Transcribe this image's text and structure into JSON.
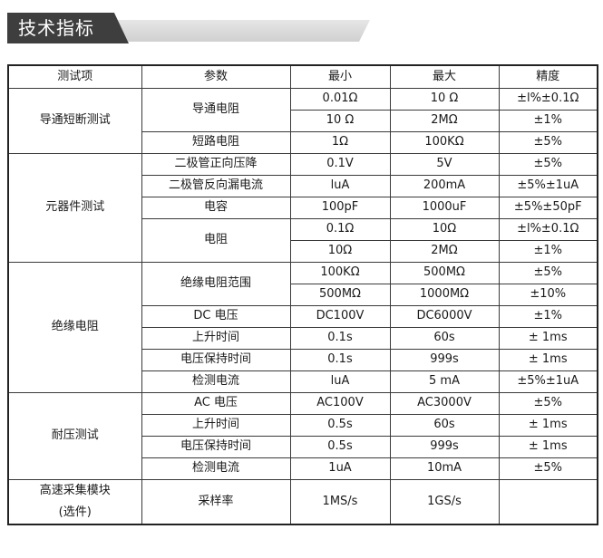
{
  "header": {
    "title": "技术指标"
  },
  "table": {
    "headers": [
      "测试项",
      "参数",
      "最小",
      "最大",
      "精度"
    ],
    "groups": {
      "conduction": {
        "name": "导通短断测试",
        "on_res": {
          "param": "导通电阻",
          "r1": [
            "0.01Ω",
            "10 Ω",
            "±l%±0.1Ω"
          ],
          "r2": [
            "10 Ω",
            "2MΩ",
            "±1%"
          ]
        },
        "short_res": {
          "param": "短路电阻",
          "vals": [
            "1Ω",
            "100KΩ",
            "±5%"
          ]
        }
      },
      "component": {
        "name": "元器件测试",
        "diode_fwd": {
          "param": "二极管正向压降",
          "vals": [
            "0.1V",
            "5V",
            "±5%"
          ]
        },
        "diode_leak": {
          "param": "二极管反向漏电流",
          "vals": [
            "luA",
            "200mA",
            "±5%±1uA"
          ]
        },
        "capacitance": {
          "param": "电容",
          "vals": [
            "100pF",
            "1000uF",
            "±5%±50pF"
          ]
        },
        "resistance": {
          "param": "电阻",
          "r1": [
            "0.1Ω",
            "10Ω",
            "±l%±0.1Ω"
          ],
          "r2": [
            "10Ω",
            "2MΩ",
            "±1%"
          ]
        }
      },
      "insulation": {
        "name": "绝缘电阻",
        "range": {
          "param": "绝缘电阻范围",
          "r1": [
            "100KΩ",
            "500MΩ",
            "±5%"
          ],
          "r2": [
            "500MΩ",
            "1000MΩ",
            "±10%"
          ]
        },
        "dc_voltage": {
          "param": "DC 电压",
          "vals": [
            "DC100V",
            "DC6000V",
            "±1%"
          ]
        },
        "rise_time": {
          "param": "上升时间",
          "vals": [
            "0.1s",
            "60s",
            "± 1ms"
          ]
        },
        "hold_time": {
          "param": "电压保持时间",
          "vals": [
            "0.1s",
            "999s",
            "± 1ms"
          ]
        },
        "det_current": {
          "param": "检测电流",
          "vals": [
            "luA",
            "5 mA",
            "±5%±1uA"
          ]
        }
      },
      "withstand": {
        "name": "耐压测试",
        "ac_voltage": {
          "param": "AC 电压",
          "vals": [
            "AC100V",
            "AC3000V",
            "±5%"
          ]
        },
        "rise_time": {
          "param": "上升时间",
          "vals": [
            "0.5s",
            "60s",
            "± 1ms"
          ]
        },
        "hold_time": {
          "param": "电压保持时间",
          "vals": [
            "0.5s",
            "999s",
            "± 1ms"
          ]
        },
        "det_current": {
          "param": "检测电流",
          "vals": [
            "1uA",
            "10mA",
            "±5%"
          ]
        }
      },
      "acquisition": {
        "name_line1": "高速采集模块",
        "name_line2": "(选件)",
        "sample_rate": {
          "param": "采样率",
          "vals": [
            "1MS/s",
            "1GS/s",
            ""
          ]
        }
      }
    }
  }
}
